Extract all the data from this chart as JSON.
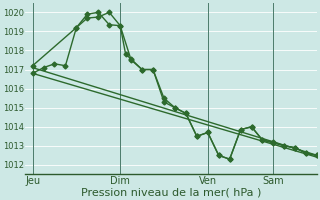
{
  "bg_color": "#cde8e5",
  "grid_color": "#b0d4d0",
  "line_color": "#2d6a2d",
  "marker": "D",
  "marker_size": 2.5,
  "line_width": 1.0,
  "xlabel": "Pression niveau de la mer( hPa )",
  "xlabel_fontsize": 8,
  "ytick_fontsize": 6,
  "xtick_fontsize": 7,
  "yticks": [
    1012,
    1013,
    1014,
    1015,
    1016,
    1017,
    1018,
    1019,
    1020
  ],
  "ylim": [
    1011.5,
    1020.5
  ],
  "xtick_labels": [
    "Jeu",
    "Dim",
    "Ven",
    "Sam"
  ],
  "xtick_positions": [
    0,
    48,
    96,
    132
  ],
  "vline_positions": [
    0,
    48,
    96,
    132
  ],
  "xlim": [
    -4,
    156
  ],
  "series_straight1": {
    "x": [
      0,
      156
    ],
    "y": [
      1017.1,
      1012.5
    ]
  },
  "series_straight2": {
    "x": [
      0,
      156
    ],
    "y": [
      1016.8,
      1012.4
    ]
  },
  "series_main": {
    "x": [
      0,
      6,
      12,
      18,
      24,
      30,
      36,
      42,
      48,
      51,
      54,
      60,
      66,
      72,
      78,
      84,
      90,
      96,
      102,
      108,
      114,
      120,
      126,
      132,
      138,
      144,
      150,
      156
    ],
    "y": [
      1016.8,
      1017.1,
      1017.3,
      1017.2,
      1019.2,
      1019.7,
      1019.75,
      1020.0,
      1019.3,
      1017.8,
      1017.55,
      1017.0,
      1017.0,
      1015.3,
      1015.0,
      1014.7,
      1013.5,
      1013.7,
      1012.5,
      1012.3,
      1013.85,
      1014.0,
      1013.3,
      1013.2,
      1013.0,
      1012.9,
      1012.6,
      1012.5
    ]
  },
  "series_upper": {
    "x": [
      0,
      24,
      30,
      36,
      42,
      48,
      54,
      60,
      66,
      72,
      78,
      84,
      90,
      96,
      102,
      108,
      114,
      120,
      126,
      132,
      138,
      144,
      150,
      156
    ],
    "y": [
      1017.2,
      1019.2,
      1019.9,
      1020.0,
      1019.35,
      1019.3,
      1017.5,
      1017.0,
      1017.0,
      1015.5,
      1015.0,
      1014.7,
      1013.5,
      1013.7,
      1012.5,
      1012.3,
      1013.85,
      1014.0,
      1013.3,
      1013.15,
      1013.0,
      1012.9,
      1012.6,
      1012.5
    ]
  }
}
